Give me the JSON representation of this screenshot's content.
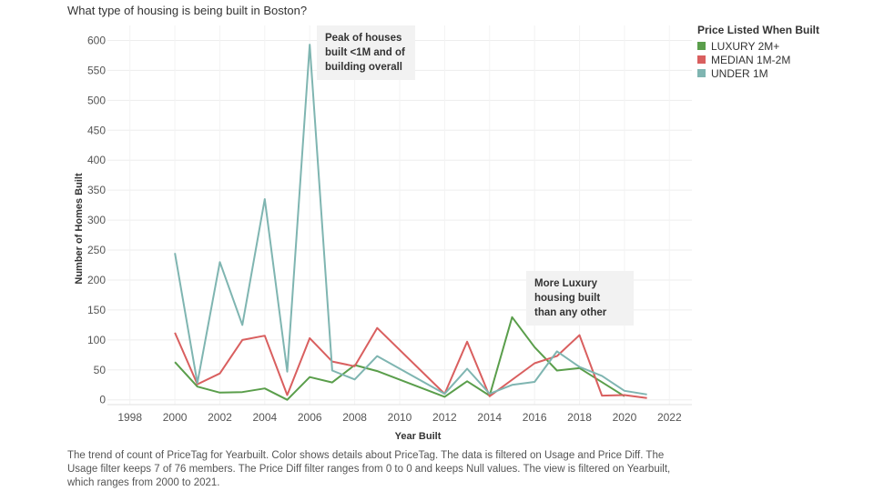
{
  "title": "What type of housing is being built in Boston?",
  "chart_data": {
    "type": "line",
    "xlabel": "Year Built",
    "ylabel": "Number of Homes Built",
    "xlim": [
      1997,
      2023
    ],
    "ylim": [
      -8,
      625
    ],
    "x_ticks": [
      1998,
      2000,
      2002,
      2004,
      2006,
      2008,
      2010,
      2012,
      2014,
      2016,
      2018,
      2020,
      2022
    ],
    "y_ticks": [
      0,
      50,
      100,
      150,
      200,
      250,
      300,
      350,
      400,
      450,
      500,
      550,
      600
    ],
    "grid": true,
    "legend_title": "Price Listed When Built",
    "legend_position": "top-right",
    "series": [
      {
        "name": "LUXURY 2M+",
        "color": "#5a9e4b",
        "points": [
          [
            2000,
            63
          ],
          [
            2001,
            22
          ],
          [
            2002,
            12
          ],
          [
            2003,
            13
          ],
          [
            2004,
            19
          ],
          [
            2005,
            0
          ],
          [
            2006,
            38
          ],
          [
            2007,
            29
          ],
          [
            2008,
            58
          ],
          [
            2009,
            48
          ],
          [
            2012,
            5
          ],
          [
            2013,
            31
          ],
          [
            2014,
            7
          ],
          [
            2015,
            138
          ],
          [
            2016,
            88
          ],
          [
            2017,
            49
          ],
          [
            2018,
            53
          ],
          [
            2020,
            6
          ]
        ]
      },
      {
        "name": "MEDIAN 1M-2M",
        "color": "#d95f5f",
        "points": [
          [
            2000,
            112
          ],
          [
            2001,
            26
          ],
          [
            2002,
            44
          ],
          [
            2003,
            100
          ],
          [
            2004,
            107
          ],
          [
            2005,
            8
          ],
          [
            2006,
            103
          ],
          [
            2007,
            64
          ],
          [
            2008,
            56
          ],
          [
            2009,
            120
          ],
          [
            2012,
            10
          ],
          [
            2013,
            97
          ],
          [
            2014,
            6
          ],
          [
            2016,
            61
          ],
          [
            2017,
            73
          ],
          [
            2018,
            108
          ],
          [
            2019,
            7
          ],
          [
            2020,
            8
          ],
          [
            2021,
            3
          ]
        ]
      },
      {
        "name": "UNDER 1M",
        "color": "#7fb5b1",
        "points": [
          [
            2000,
            245
          ],
          [
            2001,
            28
          ],
          [
            2002,
            230
          ],
          [
            2003,
            125
          ],
          [
            2004,
            335
          ],
          [
            2005,
            47
          ],
          [
            2006,
            593
          ],
          [
            2007,
            49
          ],
          [
            2008,
            34
          ],
          [
            2009,
            73
          ],
          [
            2012,
            10
          ],
          [
            2013,
            52
          ],
          [
            2014,
            10
          ],
          [
            2015,
            25
          ],
          [
            2016,
            30
          ],
          [
            2017,
            81
          ],
          [
            2018,
            55
          ],
          [
            2019,
            40
          ],
          [
            2020,
            15
          ],
          [
            2021,
            9
          ]
        ]
      }
    ],
    "annotations": [
      {
        "text": "Peak of houses\nbuilt <1M and of\nbuilding overall"
      },
      {
        "text": "More Luxury\nhousing built\nthan any other"
      }
    ]
  },
  "caption": "The trend of count of PriceTag for Yearbuilt.  Color shows details about PriceTag. The data is filtered on Usage and Price Diff. The Usage filter keeps 7 of 76 members. The Price Diff filter ranges from 0 to 0 and keeps Null values. The view is filtered on Yearbuilt, which ranges from 2000 to 2021."
}
